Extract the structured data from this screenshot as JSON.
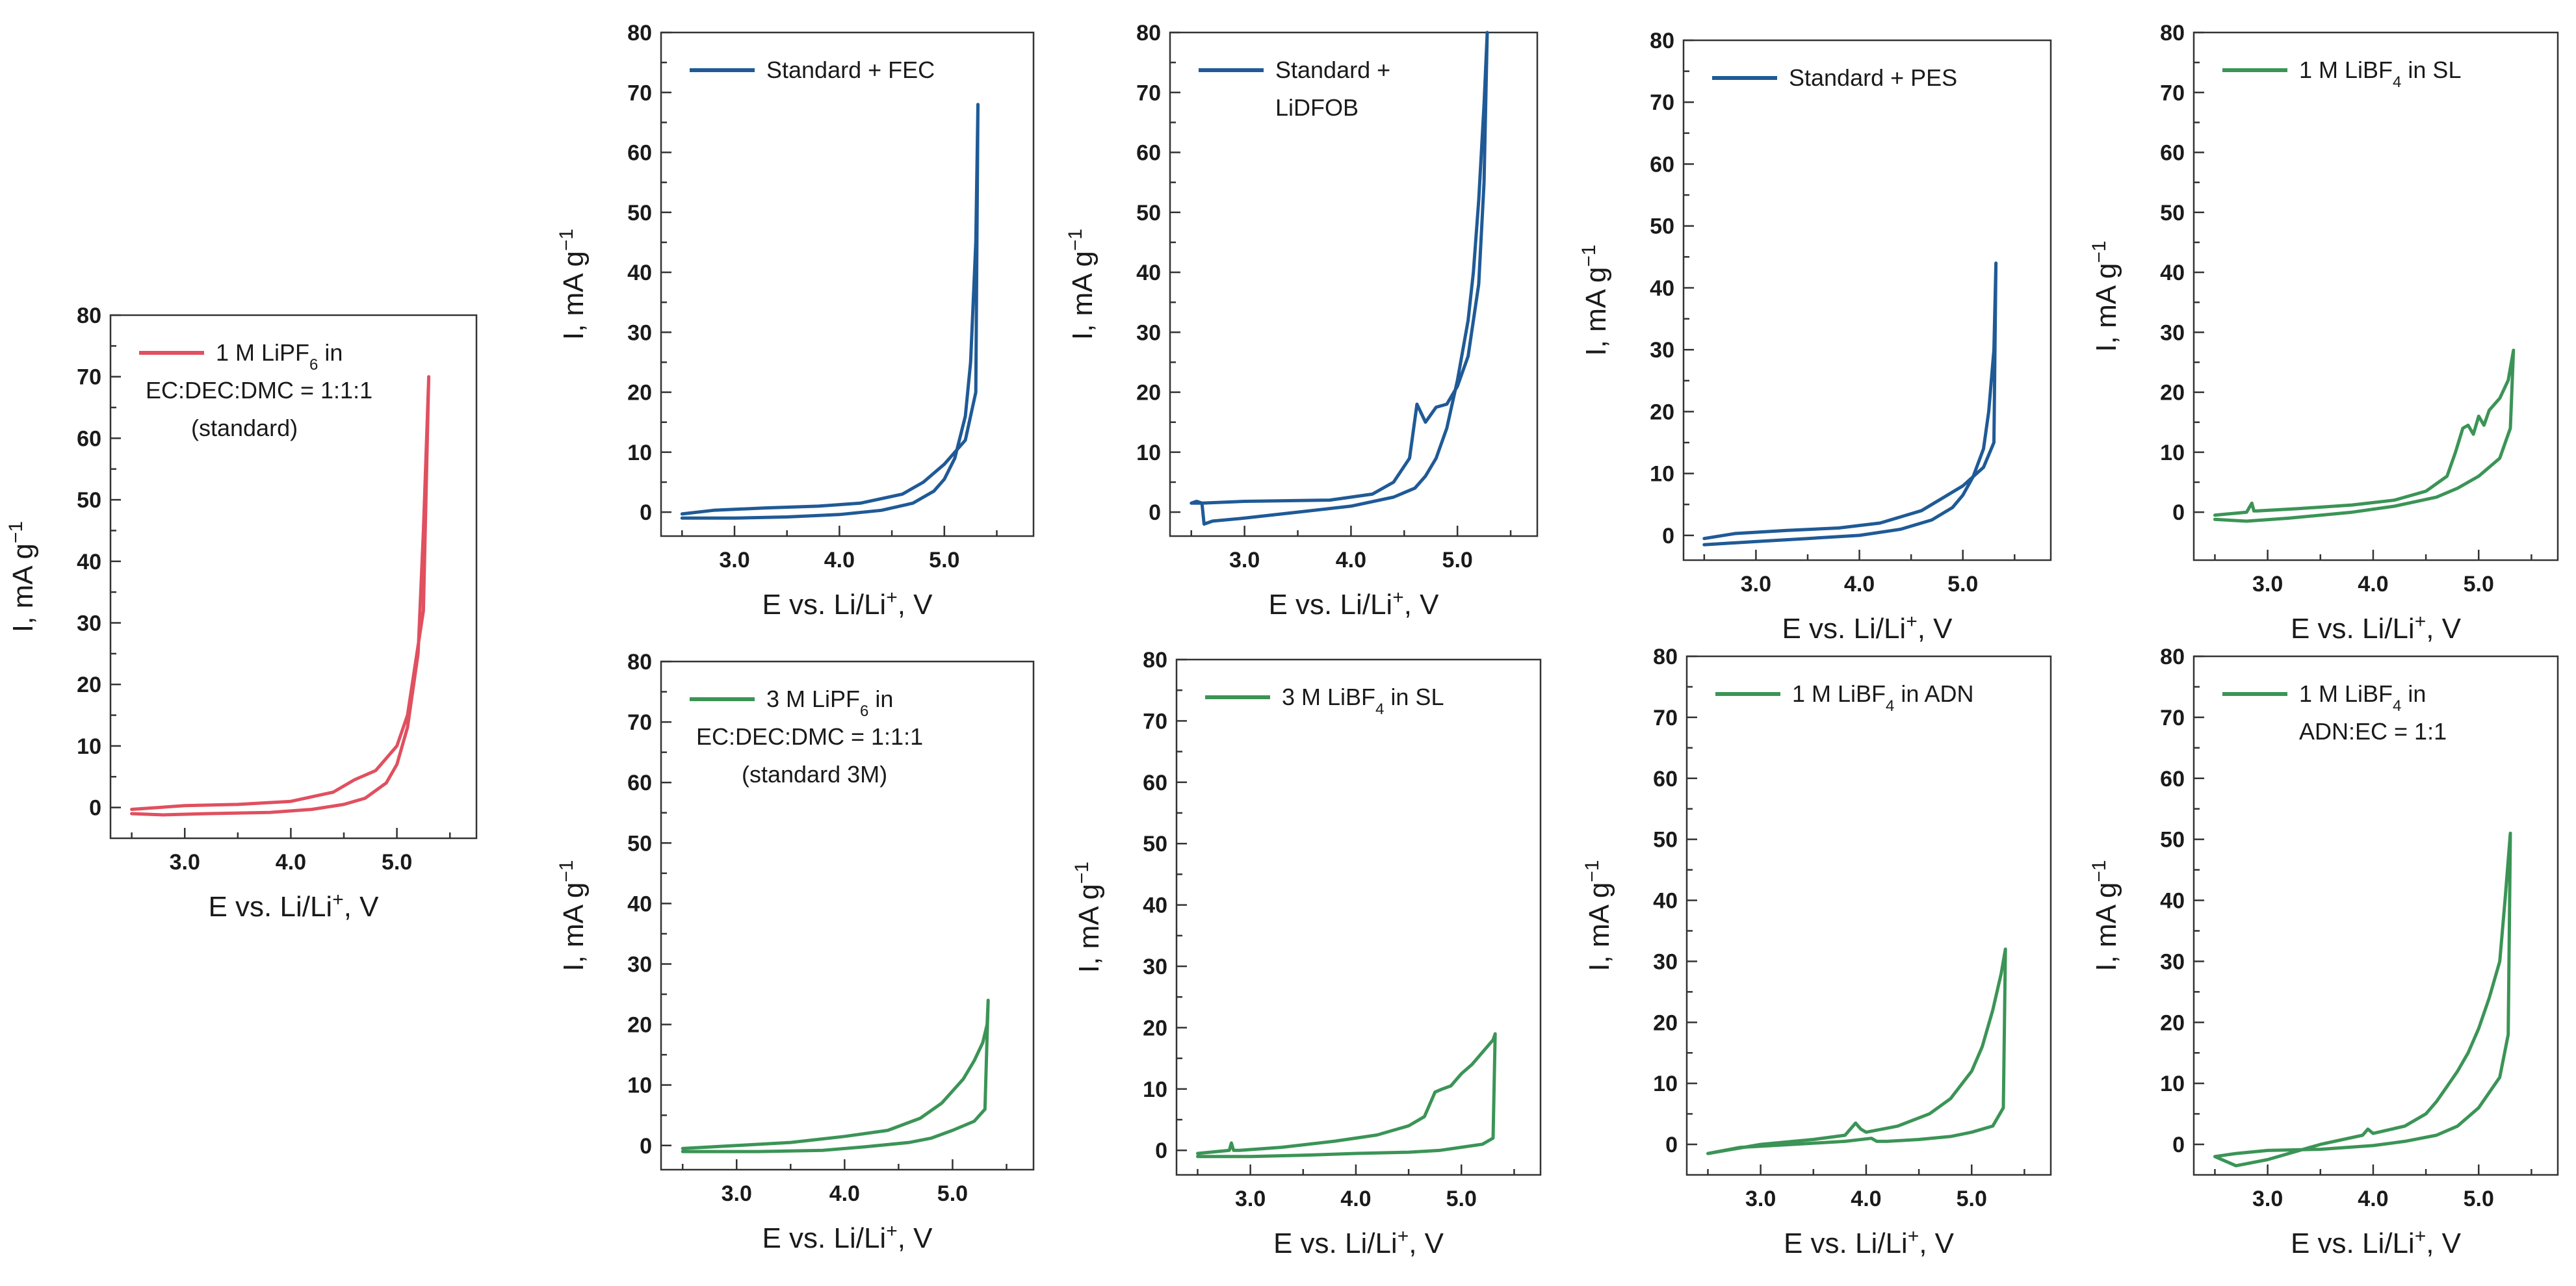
{
  "figure": {
    "colors": {
      "red": "#e0505f",
      "blue": "#1f5a96",
      "green": "#3b9456"
    },
    "axis_text": {
      "xlabel": "E vs. Li/Li",
      "xlabel_sup": "+",
      "xlabel_unit": ", V",
      "ylabel": "I, mA g",
      "ylabel_sup": "−1"
    }
  },
  "chart_data": [
    {
      "id": "standard",
      "type": "line",
      "color": "red",
      "xlim": [
        2.3,
        5.75
      ],
      "ylim": [
        -5,
        80
      ],
      "yticks": [
        0,
        10,
        20,
        30,
        40,
        50,
        60,
        70,
        80
      ],
      "xticks": [
        "3.0",
        "4.0",
        "5.0"
      ],
      "xtick_values": [
        3.0,
        4.0,
        5.0
      ],
      "legend": [
        {
          "text": "1 M LiPF",
          "sub": "6",
          "after": " in"
        },
        {
          "text": "EC:DEC:DMC = 1:1:1"
        },
        {
          "text": "(standard)"
        }
      ],
      "legend_position": "top-left",
      "series": [
        {
          "name": "1 M LiPF6 in EC:DEC:DMC = 1:1:1 (standard)",
          "x": [
            2.5,
            2.8,
            3.2,
            3.8,
            4.2,
            4.5,
            4.7,
            4.9,
            5.0,
            5.1,
            5.2,
            5.25,
            5.3,
            5.25,
            5.1,
            5.0,
            4.9,
            4.8,
            4.6,
            4.4,
            4.0,
            3.5,
            3.0,
            2.5
          ],
          "y": [
            -1.0,
            -1.2,
            -1.0,
            -0.8,
            -0.3,
            0.5,
            1.5,
            4.0,
            7.0,
            13.0,
            25.0,
            45.0,
            70.0,
            32.0,
            15.0,
            10.0,
            8.0,
            6.0,
            4.5,
            2.5,
            1.0,
            0.5,
            0.3,
            -0.3
          ]
        }
      ]
    },
    {
      "id": "standard-fec",
      "type": "line",
      "color": "blue",
      "xlim": [
        2.3,
        5.85
      ],
      "ylim": [
        -4,
        80
      ],
      "yticks": [
        0,
        10,
        20,
        30,
        40,
        50,
        60,
        70,
        80
      ],
      "xticks": [
        "3.0",
        "4.0",
        "5.0"
      ],
      "xtick_values": [
        3.0,
        4.0,
        5.0
      ],
      "legend": [
        {
          "text": "Standard + FEC"
        }
      ],
      "legend_position": "top-left",
      "series": [
        {
          "name": "Standard + FEC",
          "x": [
            2.5,
            3.0,
            3.5,
            4.0,
            4.4,
            4.7,
            4.9,
            5.0,
            5.1,
            5.2,
            5.25,
            5.3,
            5.32,
            5.3,
            5.2,
            5.0,
            4.8,
            4.6,
            4.2,
            3.8,
            3.3,
            2.8,
            2.5
          ],
          "y": [
            -1.0,
            -1.0,
            -0.8,
            -0.4,
            0.3,
            1.5,
            3.5,
            5.5,
            9.0,
            16.0,
            25.0,
            45.0,
            68.0,
            20.0,
            12.0,
            8.0,
            5.0,
            3.0,
            1.5,
            1.0,
            0.7,
            0.3,
            -0.3
          ]
        }
      ]
    },
    {
      "id": "standard-lidfob",
      "type": "line",
      "color": "blue",
      "xlim": [
        2.3,
        5.75
      ],
      "ylim": [
        -4,
        80
      ],
      "yticks": [
        0,
        10,
        20,
        30,
        40,
        50,
        60,
        70,
        80
      ],
      "xticks": [
        "3.0",
        "4.0",
        "5.0"
      ],
      "xtick_values": [
        3.0,
        4.0,
        5.0
      ],
      "legend": [
        {
          "text": "Standard +"
        },
        {
          "text": "LiDFOB"
        }
      ],
      "legend_position": "top-left",
      "series": [
        {
          "name": "Standard + LiDFOB",
          "x": [
            2.5,
            2.55,
            2.6,
            2.62,
            2.7,
            3.0,
            3.5,
            4.0,
            4.4,
            4.6,
            4.7,
            4.8,
            4.9,
            5.0,
            5.1,
            5.15,
            5.2,
            5.25,
            5.28,
            5.25,
            5.2,
            5.1,
            5.0,
            4.9,
            4.8,
            4.7,
            4.62,
            4.55,
            4.4,
            4.2,
            3.8,
            3.0,
            2.6,
            2.5
          ],
          "y": [
            1.5,
            1.8,
            1.5,
            -2.0,
            -1.5,
            -1.0,
            0.0,
            1.0,
            2.5,
            4.0,
            6.0,
            9.0,
            14.0,
            22.0,
            32.0,
            40.0,
            52.0,
            68.0,
            80.0,
            55.0,
            38.0,
            26.0,
            21.0,
            18.0,
            17.5,
            15.0,
            18.0,
            9.0,
            5.0,
            3.0,
            2.0,
            1.8,
            1.5,
            1.5
          ]
        }
      ]
    },
    {
      "id": "standard-pes",
      "type": "line",
      "color": "blue",
      "xlim": [
        2.3,
        5.85
      ],
      "ylim": [
        -4,
        80
      ],
      "yticks": [
        0,
        10,
        20,
        30,
        40,
        50,
        60,
        70,
        80
      ],
      "xticks": [
        "3.0",
        "4.0",
        "5.0"
      ],
      "xtick_values": [
        3.0,
        4.0,
        5.0
      ],
      "legend": [
        {
          "text": "Standard + PES"
        }
      ],
      "legend_position": "top-left",
      "series": [
        {
          "name": "Standard + PES",
          "x": [
            2.5,
            3.0,
            3.5,
            4.0,
            4.4,
            4.7,
            4.9,
            5.0,
            5.1,
            5.2,
            5.25,
            5.3,
            5.32,
            5.3,
            5.2,
            5.0,
            4.8,
            4.6,
            4.2,
            3.8,
            3.3,
            2.8,
            2.5
          ],
          "y": [
            -1.5,
            -1.0,
            -0.5,
            0.0,
            1.0,
            2.5,
            4.5,
            6.5,
            9.5,
            14.0,
            20.0,
            30.0,
            44.0,
            15.0,
            11.0,
            8.0,
            6.0,
            4.0,
            2.0,
            1.2,
            0.8,
            0.3,
            -0.5
          ]
        }
      ]
    },
    {
      "id": "libf4-sl",
      "type": "line",
      "color": "green",
      "xlim": [
        2.3,
        5.75
      ],
      "ylim": [
        -8,
        80
      ],
      "yticks": [
        0,
        10,
        20,
        30,
        40,
        50,
        60,
        70,
        80
      ],
      "xticks": [
        "3.0",
        "4.0",
        "5.0"
      ],
      "xtick_values": [
        3.0,
        4.0,
        5.0
      ],
      "legend": [
        {
          "text": "1 M LiBF",
          "sub": "4",
          "after": " in SL"
        }
      ],
      "legend_position": "top-left",
      "series": [
        {
          "name": "1 M LiBF4 in SL",
          "x": [
            2.5,
            2.8,
            2.85,
            2.87,
            2.9,
            3.3,
            3.8,
            4.2,
            4.5,
            4.7,
            4.78,
            4.85,
            4.9,
            4.95,
            5.0,
            5.05,
            5.1,
            5.2,
            5.28,
            5.33,
            5.3,
            5.2,
            5.0,
            4.8,
            4.6,
            4.2,
            3.8,
            3.2,
            2.8,
            2.5
          ],
          "y": [
            -0.5,
            0.0,
            1.5,
            0.2,
            0.2,
            0.6,
            1.2,
            2.0,
            3.5,
            6.0,
            10.0,
            14.0,
            14.5,
            13.0,
            16.0,
            14.5,
            17.0,
            19.0,
            22.0,
            27.0,
            14.0,
            9.0,
            6.0,
            4.0,
            2.5,
            1.0,
            0.0,
            -1.0,
            -1.5,
            -1.2
          ]
        }
      ]
    },
    {
      "id": "lipf6-3m",
      "type": "line",
      "color": "green",
      "xlim": [
        2.3,
        5.75
      ],
      "ylim": [
        -4,
        80
      ],
      "yticks": [
        0,
        10,
        20,
        30,
        40,
        50,
        60,
        70,
        80
      ],
      "xticks": [
        "3.0",
        "4.0",
        "5.0"
      ],
      "xtick_values": [
        3.0,
        4.0,
        5.0
      ],
      "legend": [
        {
          "text": "3 M LiPF",
          "sub": "6",
          "after": " in"
        },
        {
          "text": "EC:DEC:DMC = 1:1:1"
        },
        {
          "text": "(standard 3M)"
        }
      ],
      "legend_position": "top-left",
      "series": [
        {
          "name": "3 M LiPF6 in EC:DEC:DMC = 1:1:1 (standard 3M)",
          "x": [
            2.5,
            3.0,
            3.5,
            4.0,
            4.4,
            4.7,
            4.9,
            5.0,
            5.1,
            5.2,
            5.28,
            5.32,
            5.33,
            5.3,
            5.2,
            5.0,
            4.8,
            4.6,
            4.2,
            3.8,
            3.2,
            2.7,
            2.5
          ],
          "y": [
            -0.5,
            0.0,
            0.5,
            1.5,
            2.5,
            4.5,
            7.0,
            9.0,
            11.0,
            14.0,
            17.0,
            20.0,
            24.0,
            6.0,
            4.0,
            2.5,
            1.2,
            0.5,
            -0.2,
            -0.8,
            -1.0,
            -1.0,
            -1.0
          ]
        }
      ]
    },
    {
      "id": "libf4-sl-3m",
      "type": "line",
      "color": "green",
      "xlim": [
        2.3,
        5.75
      ],
      "ylim": [
        -4,
        80
      ],
      "yticks": [
        0,
        10,
        20,
        30,
        40,
        50,
        60,
        70,
        80
      ],
      "xticks": [
        "3.0",
        "4.0",
        "5.0"
      ],
      "xtick_values": [
        3.0,
        4.0,
        5.0
      ],
      "legend": [
        {
          "text": "3 M LiBF",
          "sub": "4",
          "after": " in SL"
        }
      ],
      "legend_position": "top-left",
      "series": [
        {
          "name": "3 M LiBF4 in SL",
          "x": [
            2.5,
            2.8,
            2.82,
            2.84,
            2.9,
            3.3,
            3.8,
            4.2,
            4.5,
            4.65,
            4.75,
            4.82,
            4.9,
            5.0,
            5.1,
            5.2,
            5.3,
            5.32,
            5.3,
            5.2,
            5.0,
            4.8,
            4.5,
            4.0,
            3.5,
            3.0,
            2.5
          ],
          "y": [
            -0.5,
            0.0,
            1.2,
            0.0,
            0.0,
            0.5,
            1.5,
            2.5,
            4.0,
            5.5,
            9.5,
            10.0,
            10.5,
            12.5,
            14.0,
            16.0,
            18.0,
            19.0,
            2.0,
            1.0,
            0.5,
            0.0,
            -0.3,
            -0.5,
            -0.8,
            -1.0,
            -1.0
          ]
        }
      ]
    },
    {
      "id": "libf4-adn",
      "type": "line",
      "color": "green",
      "xlim": [
        2.3,
        5.75
      ],
      "ylim": [
        -5,
        80
      ],
      "yticks": [
        0,
        10,
        20,
        30,
        40,
        50,
        60,
        70,
        80
      ],
      "xticks": [
        "3.0",
        "4.0",
        "5.0"
      ],
      "xtick_values": [
        3.0,
        4.0,
        5.0
      ],
      "legend": [
        {
          "text": "1 M LiBF",
          "sub": "4",
          "after": " in ADN"
        }
      ],
      "legend_position": "top-left",
      "series": [
        {
          "name": "1 M LiBF4 in ADN",
          "x": [
            2.5,
            3.0,
            3.5,
            3.8,
            3.9,
            3.95,
            4.0,
            4.3,
            4.6,
            4.8,
            5.0,
            5.1,
            5.2,
            5.28,
            5.32,
            5.3,
            5.2,
            5.0,
            4.8,
            4.5,
            4.2,
            4.1,
            4.05,
            3.8,
            3.3,
            2.8,
            2.5
          ],
          "y": [
            -1.5,
            0.0,
            0.8,
            1.5,
            3.5,
            2.5,
            2.0,
            3.0,
            5.0,
            7.5,
            12.0,
            16.0,
            22.0,
            28.0,
            32.0,
            6.0,
            3.0,
            2.0,
            1.3,
            0.8,
            0.5,
            0.5,
            1.0,
            0.5,
            0.0,
            -0.5,
            -1.5
          ]
        }
      ]
    },
    {
      "id": "libf4-adn-ec",
      "type": "line",
      "color": "green",
      "xlim": [
        2.3,
        5.75
      ],
      "ylim": [
        -5,
        80
      ],
      "yticks": [
        0,
        10,
        20,
        30,
        40,
        50,
        60,
        70,
        80
      ],
      "xticks": [
        "3.0",
        "4.0",
        "5.0"
      ],
      "xtick_values": [
        3.0,
        4.0,
        5.0
      ],
      "legend": [
        {
          "text": "1 M LiBF",
          "sub": "4",
          "after": " in"
        },
        {
          "text": "ADN:EC = 1:1"
        }
      ],
      "legend_position": "top-left",
      "series": [
        {
          "name": "1 M LiBF4 in ADN:EC = 1:1",
          "x": [
            2.5,
            2.7,
            3.0,
            3.5,
            3.9,
            3.95,
            4.0,
            4.3,
            4.5,
            4.6,
            4.7,
            4.8,
            4.9,
            5.0,
            5.1,
            5.2,
            5.25,
            5.3,
            5.28,
            5.2,
            5.0,
            4.8,
            4.6,
            4.3,
            4.0,
            3.5,
            3.0,
            2.7,
            2.5
          ],
          "y": [
            -2.0,
            -3.5,
            -2.5,
            0.0,
            1.5,
            2.5,
            1.8,
            3.0,
            5.0,
            7.0,
            9.5,
            12.0,
            15.0,
            19.0,
            24.0,
            30.0,
            40.0,
            51.0,
            18.0,
            11.0,
            6.0,
            3.0,
            1.5,
            0.5,
            -0.2,
            -0.8,
            -1.0,
            -1.5,
            -2.0
          ]
        }
      ]
    }
  ]
}
